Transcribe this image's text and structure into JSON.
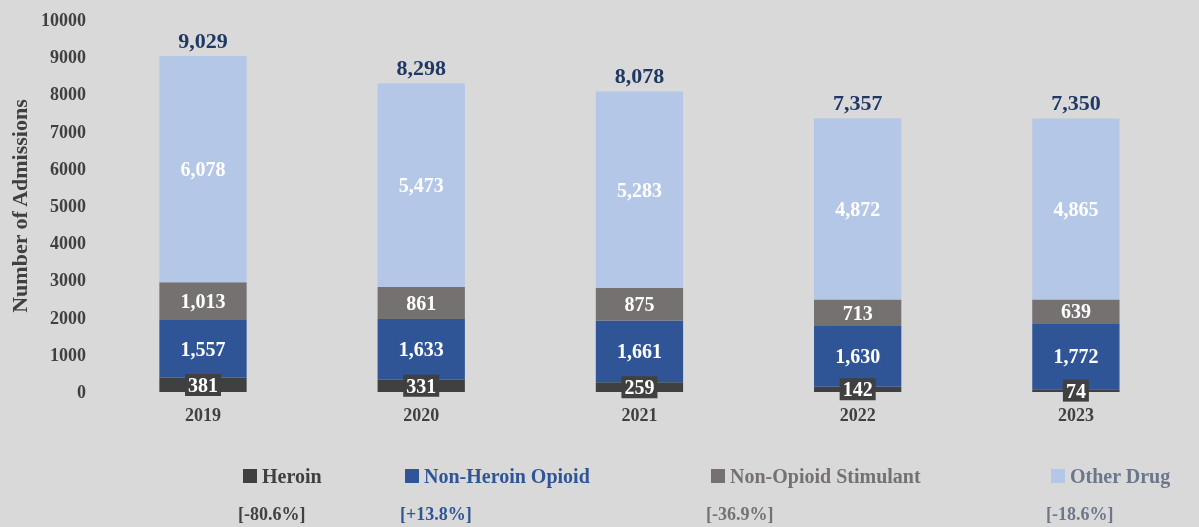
{
  "chart_data": {
    "type": "bar",
    "stacked": true,
    "ylabel": "Number of Admissions",
    "categories": [
      "2019",
      "2020",
      "2021",
      "2022",
      "2023"
    ],
    "series": [
      {
        "name": "Heroin",
        "color": "#404040",
        "values": [
          381,
          331,
          259,
          142,
          74
        ],
        "value_labels": [
          "381",
          "331",
          "259",
          "142",
          "74"
        ]
      },
      {
        "name": "Non-Heroin Opioid",
        "color": "#2f5597",
        "values": [
          1557,
          1633,
          1661,
          1630,
          1772
        ],
        "value_labels": [
          "1,557",
          "1,633",
          "1,661",
          "1,630",
          "1,772"
        ]
      },
      {
        "name": "Non-Opioid Stimulant",
        "color": "#767171",
        "values": [
          1013,
          861,
          875,
          713,
          639
        ],
        "value_labels": [
          "1,013",
          "861",
          "875",
          "713",
          "639"
        ]
      },
      {
        "name": "Other Drug",
        "color": "#b4c7e7",
        "values": [
          6078,
          5473,
          5283,
          4872,
          4865
        ],
        "value_labels": [
          "6,078",
          "5,473",
          "5,283",
          "4,872",
          "4,865"
        ]
      }
    ],
    "totals": [
      "9,029",
      "8,298",
      "8,078",
      "7,357",
      "7,350"
    ],
    "ylim": [
      0,
      10000
    ],
    "yticks": [
      0,
      1000,
      2000,
      3000,
      4000,
      5000,
      6000,
      7000,
      8000,
      9000,
      10000
    ],
    "grid": false,
    "legend": "bottom",
    "annotations": [
      "[-80.6%]",
      "[+13.8%]",
      "[-36.9%]",
      "[-18.6%]"
    ]
  }
}
